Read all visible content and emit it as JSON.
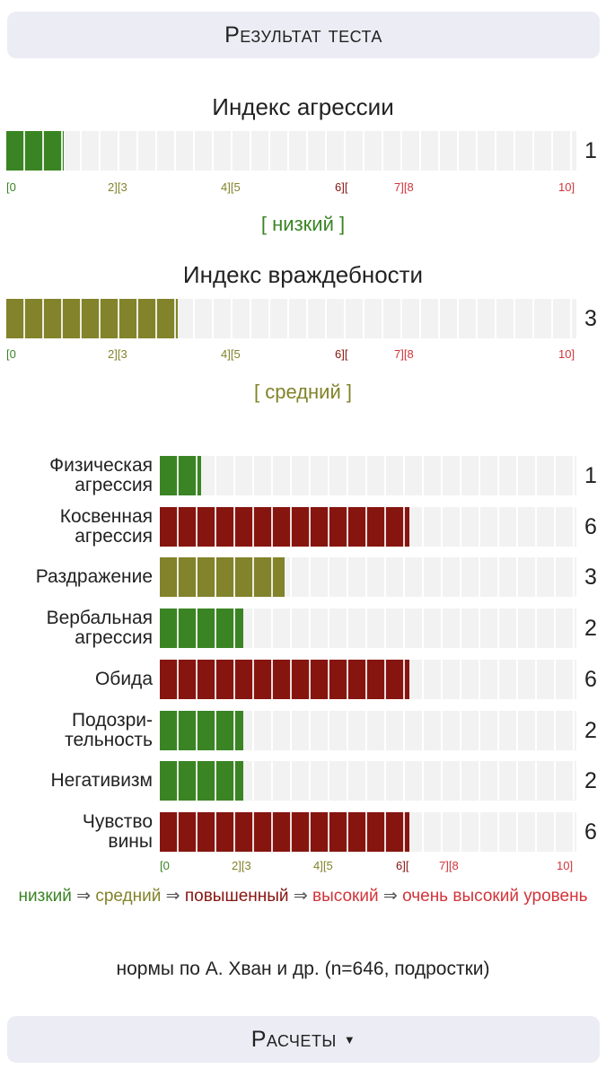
{
  "header": {
    "title": "Результат теста"
  },
  "indices": [
    {
      "title": "Индекс агрессии",
      "value": "1",
      "fraction": 0.1,
      "level": "[ низкий ]",
      "level_class": "t-low",
      "fill_class": "c-low"
    },
    {
      "title": "Индекс враждебности",
      "value": "3",
      "fraction": 0.3,
      "level": "[ средний ]",
      "level_class": "t-mid",
      "fill_class": "c-mid"
    }
  ],
  "scale_labels": [
    "[0",
    "2][3",
    "4][5",
    "6][",
    "7][8",
    "10]"
  ],
  "scales": [
    {
      "value": 1,
      "fill_class": "c-low",
      "label_lines": [
        "Физическая",
        "агрессия"
      ]
    },
    {
      "value": 6,
      "fill_class": "c-high",
      "label_lines": [
        "Косвенная",
        "агрессия"
      ]
    },
    {
      "value": 3,
      "fill_class": "c-mid",
      "label_lines": [
        "Раздражение"
      ]
    },
    {
      "value": 2,
      "fill_class": "c-low",
      "label_lines": [
        "Вербальная",
        "агрессия"
      ]
    },
    {
      "value": 6,
      "fill_class": "c-high",
      "label_lines": [
        "Обида"
      ]
    },
    {
      "value": 2,
      "fill_class": "c-low",
      "label_lines": [
        "Подозри-",
        "тельность"
      ]
    },
    {
      "value": 2,
      "fill_class": "c-low",
      "label_lines": [
        "Негативизм"
      ]
    },
    {
      "value": 6,
      "fill_class": "c-high",
      "label_lines": [
        "Чувство",
        "вины"
      ]
    }
  ],
  "legend": {
    "low": "низкий",
    "mid": "средний",
    "high": "повышенный",
    "vhigh": "высокий",
    "very_high": "очень высокий уровень",
    "arrow": "⇒"
  },
  "norms": "нормы по А. Хван и др. (n=646, подростки)",
  "footer": {
    "label": "Расчеты",
    "caret": "▼"
  },
  "colors": {
    "low": "#3a8424",
    "mid": "#82832a",
    "high": "#861510",
    "very_high": "#d2343a",
    "track": "#f2f2f2",
    "button_bg": "#ececf5"
  }
}
